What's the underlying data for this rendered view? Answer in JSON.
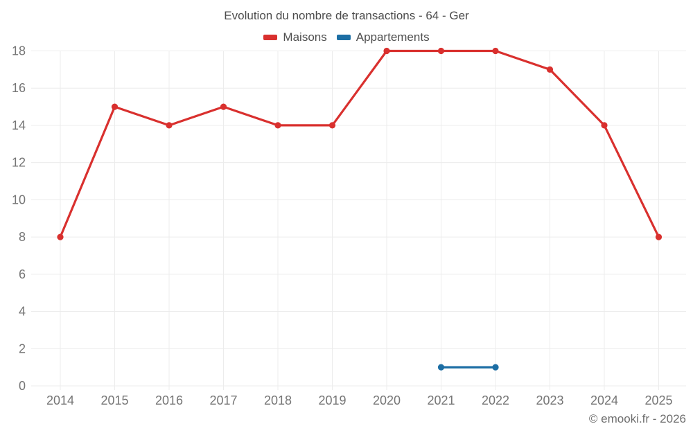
{
  "chart_data": {
    "type": "line",
    "title": "Evolution du nombre de transactions - 64 - Ger",
    "categories": [
      "2014",
      "2015",
      "2016",
      "2017",
      "2018",
      "2019",
      "2020",
      "2021",
      "2022",
      "2023",
      "2024",
      "2025"
    ],
    "series": [
      {
        "name": "Maisons",
        "color": "#d9302e",
        "values": [
          8,
          15,
          14,
          15,
          14,
          14,
          18,
          18,
          18,
          17,
          14,
          8
        ]
      },
      {
        "name": "Appartements",
        "color": "#1c6ea4",
        "values": [
          null,
          null,
          null,
          null,
          null,
          null,
          null,
          1,
          1,
          null,
          null,
          null
        ]
      }
    ],
    "xlabel": "",
    "ylabel": "",
    "ylim": [
      0,
      18
    ],
    "ytick_step": 2,
    "grid": true,
    "legend_position": "top",
    "grid_color": "#ececec",
    "tick_color": "#757575"
  },
  "footer": {
    "copyright": "© emooki.fr - 2026"
  }
}
